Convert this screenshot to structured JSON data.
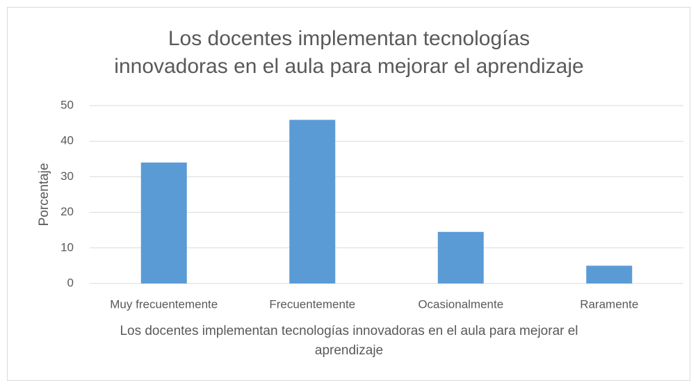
{
  "chart_data": {
    "type": "bar",
    "title": "Los docentes implementan tecnologías innovadoras en el aula para mejorar el aprendizaje",
    "xlabel": "Los docentes implementan tecnologías innovadoras en el aula para mejorar el aprendizaje",
    "ylabel": "Porcentaje",
    "categories": [
      "Muy frecuentemente",
      "Frecuentemente",
      "Ocasionalmente",
      "Raramente"
    ],
    "values": [
      34,
      46,
      14.5,
      5
    ],
    "color": "#5b9bd5",
    "ylim": [
      0,
      50
    ],
    "yticks": [
      0,
      10,
      20,
      30,
      40,
      50
    ],
    "grid": true
  }
}
